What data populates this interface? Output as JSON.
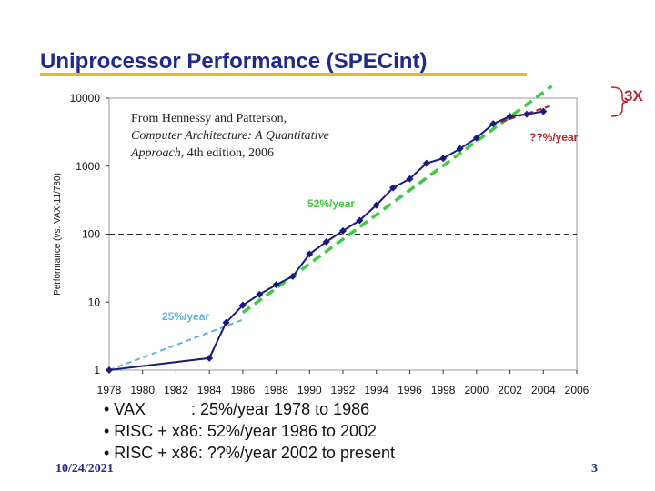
{
  "slide": {
    "title": "Uniprocessor Performance (SPECint)",
    "date": "10/24/2021",
    "page": "3"
  },
  "citation": {
    "line1": "From Hennessy and Patterson,",
    "line2": "Computer Architecture: A Quantitative",
    "line3_italic": "Approach",
    "line3_rest": ", 4th edition, 2006"
  },
  "bullets": [
    "• VAX          : 25%/year 1978 to 1986",
    "• RISC + x86: 52%/year 1986 to 2002",
    "• RISC + x86: ??%/year 2002 to present"
  ],
  "chart_data": {
    "type": "line",
    "ylabel": "Performance (vs. VAX-11/780)",
    "xlabel": "",
    "yscale": "log",
    "ylim": [
      1,
      10000
    ],
    "xlim": [
      1978,
      2006
    ],
    "x_ticks": [
      "1978",
      "1980",
      "1982",
      "1984",
      "1986",
      "1988",
      "1990",
      "1992",
      "1994",
      "1996",
      "1998",
      "2000",
      "2002",
      "2004",
      "2006"
    ],
    "y_ticks": [
      {
        "value": 1,
        "label": "1"
      },
      {
        "value": 10,
        "label": "10"
      },
      {
        "value": 100,
        "label": "100"
      },
      {
        "value": 1000,
        "label": "1000"
      },
      {
        "value": 10000,
        "label": "10000"
      }
    ],
    "grid": false,
    "reference_line": {
      "y": 100,
      "style": "dashed"
    },
    "series": [
      {
        "color": "#1a1a7a",
        "points": [
          [
            1978,
            1
          ],
          [
            1984,
            1.5
          ],
          [
            1985,
            5
          ],
          [
            1986,
            9
          ],
          [
            1987,
            13
          ],
          [
            1988,
            18
          ],
          [
            1989,
            24
          ],
          [
            1990,
            51
          ],
          [
            1991,
            77
          ],
          [
            1992,
            112
          ],
          [
            1993,
            159
          ],
          [
            1994,
            267
          ],
          [
            1995,
            480
          ],
          [
            1996,
            650
          ],
          [
            1997,
            1100
          ],
          [
            1998,
            1300
          ],
          [
            1999,
            1800
          ],
          [
            2000,
            2600
          ],
          [
            2001,
            4200
          ],
          [
            2002,
            5400
          ],
          [
            2003,
            5800
          ],
          [
            2004,
            6400
          ]
        ]
      }
    ],
    "trend_lines": [
      {
        "label": "25%/year",
        "color": "#5fb4d6",
        "from": [
          1978,
          1
        ],
        "to": [
          1986,
          5.5
        ]
      },
      {
        "label": "52%/year",
        "color": "#3ecb3e",
        "from": [
          1986,
          7
        ],
        "to": [
          2004.5,
          15000
        ]
      },
      {
        "label": "??%/year",
        "color": "#b02020",
        "from": [
          2001.5,
          4500
        ],
        "to": [
          2004.5,
          7800
        ]
      }
    ],
    "annotations": [
      {
        "text": "25%/year",
        "color": "#5fb4d6"
      },
      {
        "text": "52%/year",
        "color": "#3ecb3e"
      },
      {
        "text": "??%/year",
        "color": "#c0202e"
      },
      {
        "text": "3X",
        "color": "#c0202e"
      }
    ]
  }
}
